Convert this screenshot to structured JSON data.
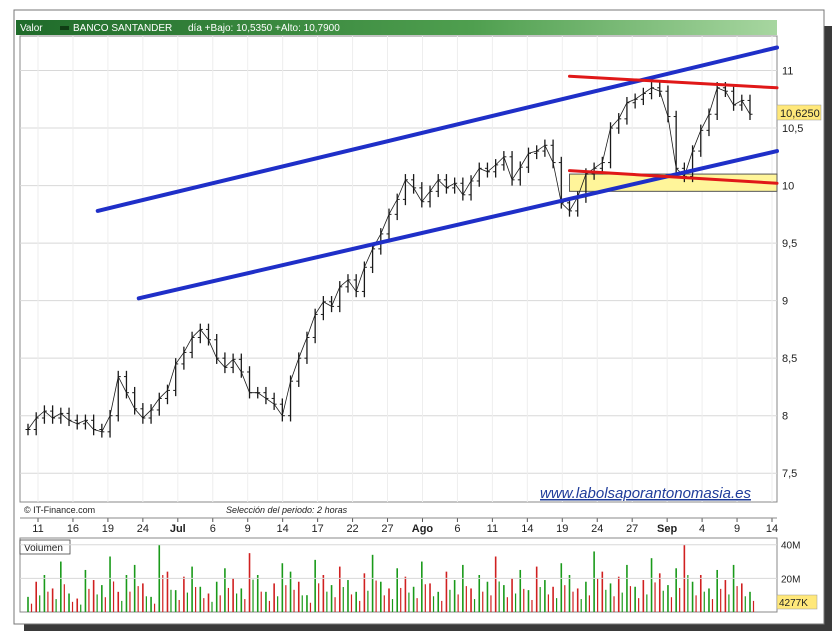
{
  "header": {
    "field_label": "Valor",
    "instrument": "BANCO SANTANDER",
    "summary": "día +Bajo: 10,5350 +Alto: 10,7900"
  },
  "footer": {
    "source": "© IT-Finance.com",
    "period": "Selección del periodo: 2 horas",
    "watermark": "www.labolsaporantonomasia.es"
  },
  "volume_panel": {
    "title": "Volumen",
    "current_value": "4277K"
  },
  "colors": {
    "header_bar": "#2e7d32",
    "header_bar_light": "#6fb36f",
    "channel_line": "#1f2fc8",
    "resistance_line": "#e01818",
    "support_box": "#fff59a",
    "price_last_box": "#ffe87a",
    "volume_up": "#1a9a1a",
    "volume_down": "#d02020",
    "candle": "#1a1a1a",
    "grid": "#d8d8d8"
  },
  "chart_data": {
    "type": "line",
    "title": "BANCO SANTANDER",
    "subtitle": "día +Bajo: 10,5350 +Alto: 10,7900",
    "xlabel": "",
    "ylabel": "",
    "ylim": [
      7.25,
      11.3
    ],
    "y_ticks": [
      "7,5",
      "8",
      "8,5",
      "9",
      "9,5",
      "10",
      "10,5",
      "11"
    ],
    "y_tick_values": [
      7.5,
      8,
      8.5,
      9,
      9.5,
      10,
      10.5,
      11
    ],
    "x_tick_labels": [
      "11",
      "16",
      "19",
      "24",
      "Jul",
      "6",
      "9",
      "14",
      "17",
      "22",
      "27",
      "Ago",
      "6",
      "11",
      "14",
      "19",
      "24",
      "27",
      "Sep",
      "4",
      "9",
      "14"
    ],
    "last_price_label": "10,6250",
    "last_price": 10.625,
    "grid": true,
    "series": [
      {
        "values": [
          7.88,
          7.98,
          8.04,
          7.98,
          8.02,
          7.96,
          7.93,
          7.96,
          7.88,
          7.86,
          8.0,
          8.34,
          8.2,
          8.06,
          7.98,
          8.05,
          8.15,
          8.22,
          8.45,
          8.55,
          8.68,
          8.75,
          8.66,
          8.5,
          8.42,
          8.49,
          8.38,
          8.2,
          8.2,
          8.15,
          8.1,
          8.0,
          8.3,
          8.5,
          8.68,
          8.88,
          8.99,
          8.95,
          9.12,
          9.18,
          9.08,
          9.29,
          9.45,
          9.58,
          9.75,
          9.88,
          10.05,
          9.98,
          9.86,
          9.95,
          10.05,
          9.98,
          10.02,
          9.92,
          10.04,
          10.15,
          10.12,
          10.18,
          10.25,
          10.05,
          10.16,
          10.28,
          10.3,
          10.35,
          10.2,
          9.85,
          9.78,
          9.9,
          10.1,
          10.15,
          10.2,
          10.5,
          10.58,
          10.72,
          10.75,
          10.8,
          10.85,
          10.82,
          10.6,
          10.15,
          10.08,
          10.3,
          10.48,
          10.62,
          10.85,
          10.82,
          10.7,
          10.74,
          10.62
        ]
      }
    ],
    "volume": {
      "axis_labels": [
        "40M",
        "20M"
      ],
      "axis_values": [
        40,
        20
      ],
      "ylim": [
        0,
        44
      ],
      "values_millions": [
        9,
        18,
        22,
        14,
        30,
        11,
        8,
        25,
        19,
        16,
        33,
        12,
        22,
        28,
        17,
        9,
        40,
        24,
        13,
        21,
        27,
        15,
        11,
        18,
        26,
        20,
        14,
        35,
        22,
        12,
        17,
        29,
        24,
        18,
        10,
        31,
        22,
        16,
        27,
        19,
        12,
        23,
        34,
        18,
        14,
        26,
        21,
        15,
        30,
        17,
        12,
        24,
        19,
        28,
        14,
        22,
        18,
        33,
        16,
        20,
        25,
        13,
        27,
        19,
        15,
        29,
        22,
        14,
        18,
        36,
        24,
        17,
        21,
        28,
        15,
        19,
        32,
        23,
        16,
        26,
        40,
        18,
        22,
        14,
        25,
        19,
        28,
        17,
        12
      ],
      "up_flags": [
        1,
        0,
        1,
        0,
        1,
        1,
        0,
        1,
        0,
        1,
        1,
        0,
        1,
        1,
        0,
        1,
        1,
        0,
        1,
        0,
        1,
        1,
        0,
        1,
        1,
        0,
        1,
        0,
        1,
        1,
        0,
        1,
        1,
        0,
        1,
        1,
        0,
        1,
        0,
        1,
        1,
        0,
        1,
        1,
        0,
        1,
        0,
        1,
        1,
        0,
        1,
        0,
        1,
        1,
        0,
        1,
        1,
        0,
        1,
        0,
        1,
        1,
        0,
        1,
        0,
        1,
        1,
        0,
        1,
        1,
        0,
        1,
        0,
        1,
        1,
        0,
        1,
        0,
        1,
        1,
        0,
        1,
        0,
        1,
        1,
        0,
        1,
        0,
        1
      ]
    },
    "annotations": [
      {
        "type": "upper-channel-line",
        "from": [
          8.5,
          9.78
        ],
        "to": [
          92,
          11.2
        ]
      },
      {
        "type": "lower-channel-line",
        "from": [
          13.5,
          9.02
        ],
        "to": [
          92,
          10.3
        ]
      },
      {
        "type": "resistance-line",
        "from": [
          66,
          10.95
        ],
        "to": [
          92,
          10.85
        ]
      },
      {
        "type": "support-line",
        "from": [
          66,
          10.13
        ],
        "to": [
          92,
          10.02
        ]
      },
      {
        "type": "support-zone",
        "x_from": [
          66,
          92
        ],
        "y_range": [
          9.95,
          10.1
        ]
      }
    ]
  }
}
